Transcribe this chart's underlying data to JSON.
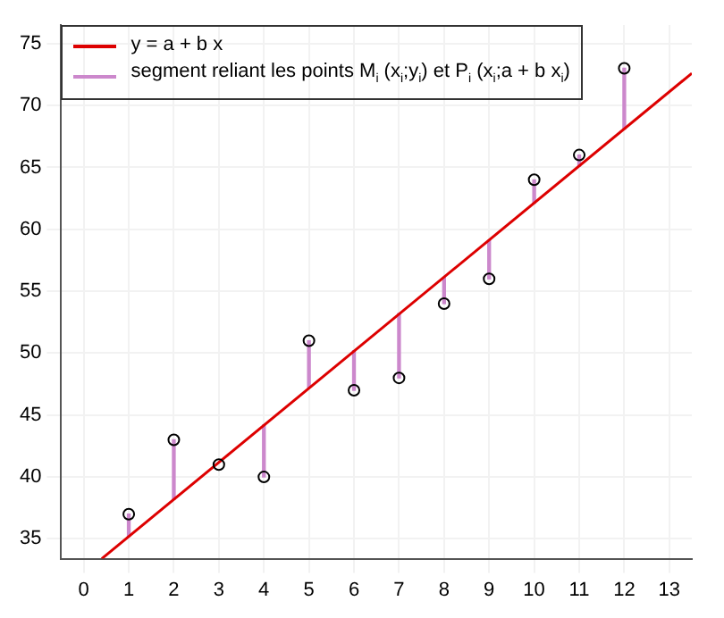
{
  "chart_data": {
    "type": "scatter",
    "xlim": [
      -0.5,
      13.5
    ],
    "ylim": [
      33.4,
      76.5
    ],
    "xticks": [
      0,
      1,
      2,
      3,
      4,
      5,
      6,
      7,
      8,
      9,
      10,
      11,
      12,
      13
    ],
    "yticks": [
      35,
      40,
      45,
      50,
      55,
      60,
      65,
      70,
      75
    ],
    "grid": true,
    "legend": "top left",
    "marker": "circle",
    "series": [
      {
        "color": "#000000",
        "x": [
          1,
          2,
          3,
          4,
          5,
          6,
          7,
          8,
          9,
          10,
          11,
          12
        ],
        "values": [
          37,
          43,
          41,
          40,
          51,
          47,
          48,
          54,
          56,
          64,
          66,
          73
        ]
      },
      {
        "type": "line",
        "name": "y = a + b x",
        "color": "#dd0000",
        "marker": "none",
        "x": [
          0.4,
          13.5
        ],
        "values": [
          33.4,
          72.6
        ]
      },
      {
        "type": "bar",
        "name": "segment reliant les points M$_{i}$ (x$_{i}$;y$_{i}$) et P$_{i}$ (x$_{i}$;a + b x$_{i}$)",
        "color": "#cc88cc",
        "x": [
          1,
          2,
          3,
          4,
          5,
          6,
          7,
          8,
          9,
          10,
          11,
          12
        ],
        "base": [
          35.2,
          38.2,
          null,
          40,
          47.2,
          47,
          48,
          54,
          56,
          62.1,
          65.1,
          68.1
        ],
        "values": [
          1.8,
          4.8,
          null,
          4.2,
          3.8,
          3.2,
          5.2,
          2.1,
          3.1,
          1.9,
          0.9,
          4.9
        ]
      }
    ]
  }
}
